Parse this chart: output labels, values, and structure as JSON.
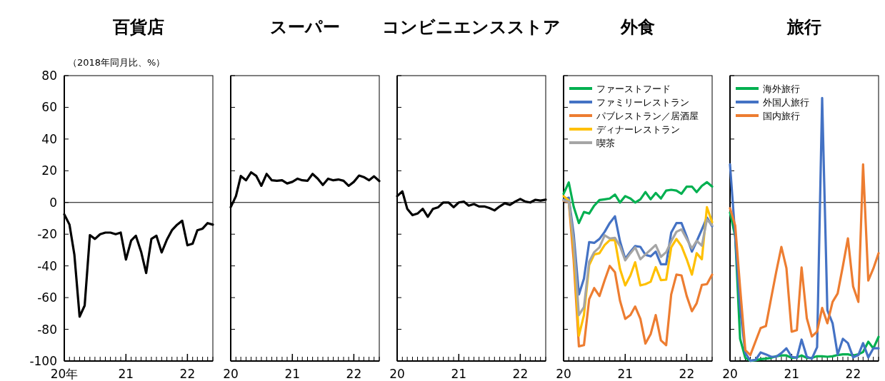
{
  "chart_data": [
    {
      "type": "line",
      "title": "百貨店",
      "ylabel": "（2018年同月比、%）",
      "x": [
        "2020-01",
        "2020-02",
        "2020-03",
        "2020-04",
        "2020-05",
        "2020-06",
        "2020-07",
        "2020-08",
        "2020-09",
        "2020-10",
        "2020-11",
        "2020-12",
        "2021-01",
        "2021-02",
        "2021-03",
        "2021-04",
        "2021-05",
        "2021-06",
        "2021-07",
        "2021-08",
        "2021-09",
        "2021-10",
        "2021-11",
        "2021-12",
        "2022-01",
        "2022-02",
        "2022-03",
        "2022-04",
        "2022-05",
        "2022-06"
      ],
      "xlim": [
        "2020-01",
        "2022-06"
      ],
      "xticks": [
        {
          "value": "2020-01",
          "label": "20年"
        },
        {
          "value": "2021-01",
          "label": "21"
        },
        {
          "value": "2022-01",
          "label": "22"
        }
      ],
      "ylim": [
        -100,
        80
      ],
      "yticks": [
        -100,
        -80,
        -60,
        -40,
        -20,
        0,
        20,
        40,
        60,
        80
      ],
      "grid": false,
      "ref_lines": [
        {
          "axis": "y",
          "value": 0,
          "color": "#000000"
        }
      ],
      "series": [
        {
          "color": "#000000",
          "values": [
            -7.5,
            -14,
            -33,
            -72,
            -65,
            -20.6,
            -23,
            -20,
            -19,
            -19,
            -20,
            -19,
            -36,
            -24,
            -21,
            -31,
            -44.5,
            -23,
            -21,
            -31.5,
            -23.5,
            -17.5,
            -14,
            -11.5,
            -27,
            -26,
            -17.5,
            -16.5,
            -13,
            -14
          ]
        }
      ]
    },
    {
      "type": "line",
      "title": "スーパー",
      "x": [
        "2020-01",
        "2020-02",
        "2020-03",
        "2020-04",
        "2020-05",
        "2020-06",
        "2020-07",
        "2020-08",
        "2020-09",
        "2020-10",
        "2020-11",
        "2020-12",
        "2021-01",
        "2021-02",
        "2021-03",
        "2021-04",
        "2021-05",
        "2021-06",
        "2021-07",
        "2021-08",
        "2021-09",
        "2021-10",
        "2021-11",
        "2021-12",
        "2022-01",
        "2022-02",
        "2022-03",
        "2022-04",
        "2022-05",
        "2022-06"
      ],
      "xlim": [
        "2020-01",
        "2022-06"
      ],
      "xticks": [
        {
          "value": "2020-01",
          "label": "20"
        },
        {
          "value": "2021-01",
          "label": "21"
        },
        {
          "value": "2022-01",
          "label": "22"
        }
      ],
      "ylim": [
        -100,
        80
      ],
      "yticks": [
        -100,
        -80,
        -60,
        -40,
        -20,
        0,
        20,
        40,
        60,
        80
      ],
      "tick_labels": "x",
      "grid": false,
      "ref_lines": [
        {
          "axis": "y",
          "value": 0,
          "color": "#000000"
        }
      ],
      "series": [
        {
          "color": "#000000",
          "values": [
            -3,
            4,
            16.7,
            14,
            19,
            16.7,
            10.5,
            18,
            14,
            13.7,
            14,
            12,
            13,
            15,
            14,
            13.7,
            18,
            15,
            11,
            15,
            14,
            14.5,
            13.7,
            10.5,
            13,
            17,
            16,
            14,
            16.5,
            13.5
          ]
        }
      ]
    },
    {
      "type": "line",
      "title": "コンビニエンスストア",
      "x": [
        "2020-01",
        "2020-02",
        "2020-03",
        "2020-04",
        "2020-05",
        "2020-06",
        "2020-07",
        "2020-08",
        "2020-09",
        "2020-10",
        "2020-11",
        "2020-12",
        "2021-01",
        "2021-02",
        "2021-03",
        "2021-04",
        "2021-05",
        "2021-06",
        "2021-07",
        "2021-08",
        "2021-09",
        "2021-10",
        "2021-11",
        "2021-12",
        "2022-01",
        "2022-02",
        "2022-03",
        "2022-04",
        "2022-05",
        "2022-06"
      ],
      "xlim": [
        "2020-01",
        "2022-06"
      ],
      "xticks": [
        {
          "value": "2020-01",
          "label": "20"
        },
        {
          "value": "2021-01",
          "label": "21"
        },
        {
          "value": "2022-01",
          "label": "22"
        }
      ],
      "ylim": [
        -100,
        80
      ],
      "yticks": [
        -100,
        -80,
        -60,
        -40,
        -20,
        0,
        20,
        40,
        60,
        80
      ],
      "tick_labels": "x",
      "grid": false,
      "ref_lines": [
        {
          "axis": "y",
          "value": 0,
          "color": "#000000"
        }
      ],
      "series": [
        {
          "color": "#000000",
          "values": [
            4,
            7,
            -4,
            -8,
            -7,
            -4,
            -9,
            -4,
            -3,
            0,
            0,
            -3,
            0,
            0.5,
            -2,
            -1,
            -2.5,
            -2.5,
            -3.5,
            -5,
            -2.5,
            -0.5,
            -1.5,
            0.5,
            2.2,
            0.5,
            0,
            1.7,
            1.2,
            1.8
          ]
        }
      ]
    },
    {
      "type": "line",
      "title": "外食",
      "x": [
        "2020-01",
        "2020-02",
        "2020-03",
        "2020-04",
        "2020-05",
        "2020-06",
        "2020-07",
        "2020-08",
        "2020-09",
        "2020-10",
        "2020-11",
        "2020-12",
        "2021-01",
        "2021-02",
        "2021-03",
        "2021-04",
        "2021-05",
        "2021-06",
        "2021-07",
        "2021-08",
        "2021-09",
        "2021-10",
        "2021-11",
        "2021-12",
        "2022-01",
        "2022-02",
        "2022-03",
        "2022-04",
        "2022-05",
        "2022-06"
      ],
      "xlim": [
        "2020-01",
        "2022-06"
      ],
      "xticks": [
        {
          "value": "2020-01",
          "label": "20"
        },
        {
          "value": "2021-01",
          "label": "21"
        },
        {
          "value": "2022-01",
          "label": "22"
        }
      ],
      "ylim": [
        -100,
        80
      ],
      "yticks": [
        -100,
        -80,
        -60,
        -40,
        -20,
        0,
        20,
        40,
        60,
        80
      ],
      "tick_labels": "x",
      "grid": false,
      "legend": "top left",
      "ref_lines": [
        {
          "axis": "y",
          "value": 0,
          "color": "#000000"
        }
      ],
      "series": [
        {
          "name": "ファーストフード",
          "color": "#00b050",
          "values": [
            5.5,
            12.6,
            -2.7,
            -13,
            -6,
            -7,
            -2,
            1.5,
            2,
            2.5,
            5,
            0,
            4,
            2.5,
            0,
            2,
            6.6,
            2,
            6,
            2.5,
            7.5,
            8,
            7.5,
            5.5,
            10,
            10,
            6.5,
            10.5,
            12.8,
            10
          ]
        },
        {
          "name": "ファミリーレストラン",
          "color": "#4472c4",
          "values": [
            1.8,
            3,
            -20,
            -58,
            -48,
            -25,
            -25.5,
            -23,
            -18.5,
            -13,
            -8.7,
            -24.5,
            -35.5,
            -31,
            -27.5,
            -28,
            -33,
            -34,
            -31,
            -39,
            -39,
            -19,
            -13,
            -13,
            -21.5,
            -31,
            -24.5,
            -17,
            -9.5,
            -15
          ]
        },
        {
          "name": "パブレストラン／居酒屋",
          "color": "#ed7d31",
          "values": [
            1,
            0.3,
            -36.5,
            -90.7,
            -90,
            -61,
            -54,
            -59,
            -49,
            -40,
            -44,
            -62,
            -73.4,
            -71,
            -65.6,
            -73.4,
            -89,
            -83,
            -71,
            -87,
            -90,
            -58,
            -45.5,
            -46,
            -59,
            -68.6,
            -63.6,
            -52,
            -51.5,
            -45.5
          ]
        },
        {
          "name": "ディナーレストラン",
          "color": "#ffc000",
          "values": [
            4,
            1.3,
            -29,
            -84,
            -71,
            -39.5,
            -32.8,
            -32,
            -26.8,
            -23.8,
            -23.8,
            -42,
            -52.3,
            -46,
            -37.7,
            -52.3,
            -51.5,
            -50,
            -40.8,
            -49,
            -48.7,
            -28.3,
            -23,
            -27.5,
            -35.8,
            -45.5,
            -32,
            -35.8,
            -3,
            -12.5
          ]
        },
        {
          "name": "喫茶",
          "color": "#a5a5a5",
          "values": [
            1.3,
            0.7,
            -24.5,
            -71,
            -66,
            -37.3,
            -31.3,
            -28.3,
            -20.7,
            -22.7,
            -22.3,
            -27.5,
            -36.5,
            -32,
            -28.3,
            -35.8,
            -32.8,
            -29.8,
            -26.8,
            -34.3,
            -31.3,
            -24.5,
            -18.5,
            -17,
            -23,
            -29,
            -24.2,
            -27.2,
            -10.7,
            -14.3
          ]
        }
      ]
    },
    {
      "type": "line",
      "title": "旅行",
      "x": [
        "2020-01",
        "2020-02",
        "2020-03",
        "2020-04",
        "2020-05",
        "2020-06",
        "2020-07",
        "2020-08",
        "2020-09",
        "2020-10",
        "2020-11",
        "2020-12",
        "2021-01",
        "2021-02",
        "2021-03",
        "2021-04",
        "2021-05",
        "2021-06",
        "2021-07",
        "2021-08",
        "2021-09",
        "2021-10",
        "2021-11",
        "2021-12",
        "2022-01",
        "2022-02",
        "2022-03",
        "2022-04",
        "2022-05",
        "2022-06"
      ],
      "xlim": [
        "2020-01",
        "2022-06"
      ],
      "xticks": [
        {
          "value": "2020-01",
          "label": "20"
        },
        {
          "value": "2021-01",
          "label": "21"
        },
        {
          "value": "2022-01",
          "label": "22"
        }
      ],
      "ylim": [
        -100,
        80
      ],
      "yticks": [
        -100,
        -80,
        -60,
        -40,
        -20,
        0,
        20,
        40,
        60,
        80
      ],
      "tick_labels": "x",
      "grid": false,
      "legend": "top left",
      "ref_lines": [
        {
          "axis": "y",
          "value": 0,
          "color": "#000000"
        }
      ],
      "series": [
        {
          "name": "海外旅行",
          "color": "#00b050",
          "values": [
            -6.3,
            -21.4,
            -86,
            -98,
            -99.8,
            -99.5,
            -98.8,
            -98.5,
            -98,
            -97,
            -96.5,
            -96.5,
            -98,
            -97.7,
            -96.5,
            -98,
            -98,
            -97,
            -97,
            -97.3,
            -97,
            -96.2,
            -95.8,
            -95.8,
            -96.5,
            -95.8,
            -94.3,
            -87.8,
            -92,
            -84.8
          ]
        },
        {
          "name": "外国人旅行",
          "color": "#4472c4",
          "values": [
            24,
            -21.4,
            -66.5,
            -95,
            -99.8,
            -99.2,
            -94.6,
            -95.8,
            -97.3,
            -97.3,
            -95,
            -92,
            -97.3,
            -98,
            -86.5,
            -97.3,
            -98.5,
            -91.3,
            65.9,
            -68,
            -76.2,
            -95.8,
            -86,
            -88.7,
            -97.7,
            -96.2,
            -88.7,
            -97.7,
            -92,
            -92
          ]
        },
        {
          "name": "国内旅行",
          "color": "#ed7d31",
          "values": [
            -3.6,
            -14.6,
            -53.7,
            -93.2,
            -96.2,
            -87.5,
            -79.2,
            -78,
            -60.5,
            -44,
            -28,
            -41.4,
            -81.5,
            -80.5,
            -41,
            -73,
            -84.5,
            -81.5,
            -66.5,
            -76.2,
            -62.7,
            -57.4,
            -40.2,
            -22.6,
            -53,
            -62.7,
            24,
            -49.2,
            -41.7,
            -32
          ]
        }
      ]
    }
  ]
}
